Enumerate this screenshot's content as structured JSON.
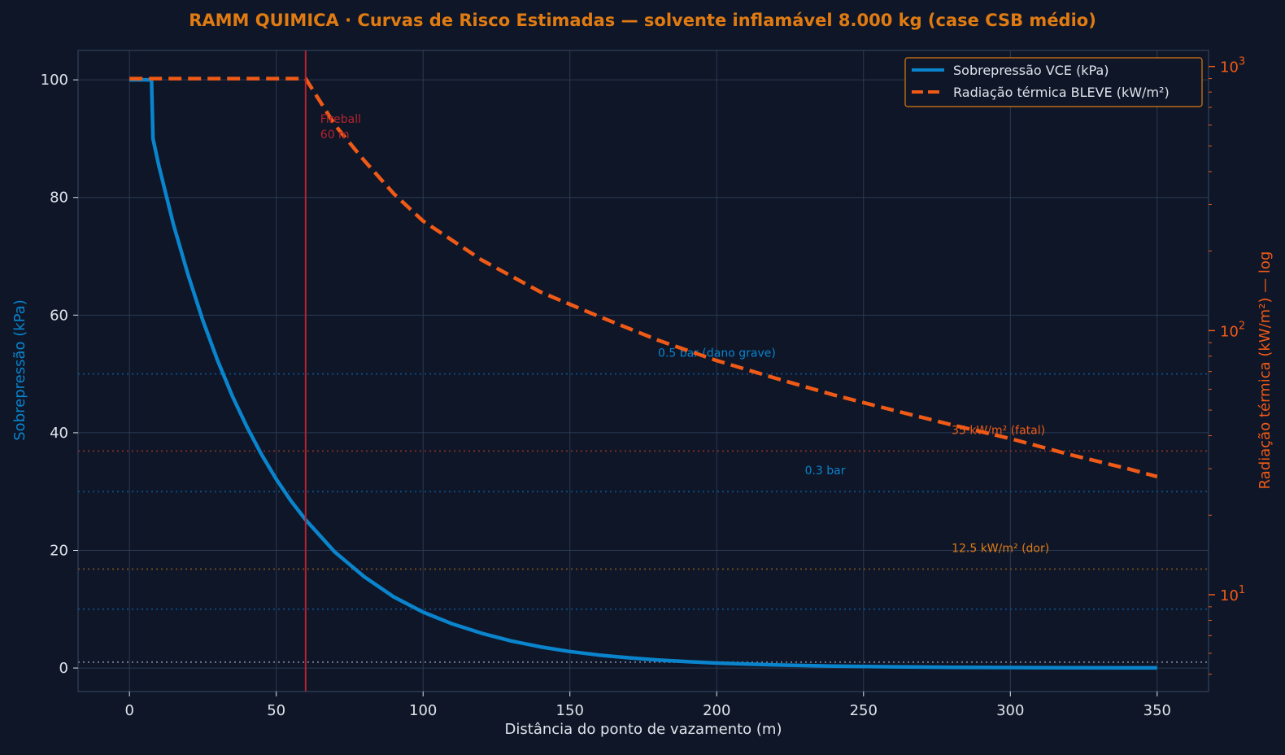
{
  "colors": {
    "background": "#0e1628",
    "title": "#e07b12",
    "vce": "#0a84cc",
    "bleve": "#f05a16",
    "fireball": "#b5232e",
    "grid": "#2c3a52",
    "tick_text": "#dfe3ea",
    "axis_spine": "#3a4a64",
    "legend_border": "#e07b12",
    "pressure_ref": "#0d4a80",
    "fatal_ref": "#7a2e26",
    "pain_ref": "#6e4a1e",
    "zero_ref": "#6b7890"
  },
  "chart_data": {
    "type": "line",
    "title": "RAMM QUIMICA · Curvas de Risco Estimadas — solvente inflamável 8.000 kg (case CSB médio)",
    "xlabel": "Distância do ponto de vazamento (m)",
    "ylabel_left": "Sobrepressão (kPa)",
    "ylabel_right": "Radiação térmica (kW/m²) — log",
    "xlim": [
      -17.5,
      367.5
    ],
    "ylim_left": [
      -4,
      105
    ],
    "ylim_right_log": [
      4.3,
      1150
    ],
    "right_axis_scale": "log",
    "grid": true,
    "legend_position": "top-right",
    "x_ticks": [
      "0",
      "50",
      "100",
      "150",
      "200",
      "250",
      "300",
      "350"
    ],
    "y_ticks_left": [
      "0",
      "20",
      "40",
      "60",
      "80",
      "100"
    ],
    "y_ticks_right": [
      {
        "base": "10",
        "exp": "1",
        "value": 10
      },
      {
        "base": "10",
        "exp": "2",
        "value": 100
      },
      {
        "base": "10",
        "exp": "3",
        "value": 1000
      }
    ],
    "series": [
      {
        "name": "Sobrepressão VCE (kPa)",
        "axis": "left",
        "style": "solid",
        "x": [
          0,
          7.5,
          8,
          10,
          15,
          20,
          25,
          30,
          35,
          40,
          45,
          50,
          55,
          60,
          70,
          80,
          90,
          100,
          110,
          120,
          130,
          140,
          150,
          160,
          170,
          180,
          190,
          200,
          220,
          240,
          260,
          280,
          300,
          320,
          340,
          350
        ],
        "y": [
          100,
          100,
          90,
          85.4,
          75.4,
          66.8,
          59.1,
          52.3,
          46.3,
          41.0,
          36.3,
          32.1,
          28.4,
          25.2,
          19.7,
          15.5,
          12.1,
          9.5,
          7.5,
          5.9,
          4.6,
          3.6,
          2.8,
          2.2,
          1.74,
          1.37,
          1.07,
          0.84,
          0.52,
          0.32,
          0.2,
          0.12,
          0.075,
          0.046,
          0.028,
          0.022
        ]
      },
      {
        "name": "Radiação térmica BLEVE (kW/m²)",
        "axis": "right",
        "style": "dashed",
        "x": [
          0,
          60,
          70,
          80,
          90,
          100,
          120,
          140,
          160,
          180,
          200,
          220,
          240,
          260,
          280,
          300,
          320,
          340,
          350
        ],
        "y": [
          900,
          900,
          600,
          440,
          330,
          260,
          185,
          140,
          113,
          92,
          77,
          66,
          57,
          50,
          44,
          39,
          34,
          30,
          28
        ]
      }
    ],
    "reference_lines": [
      {
        "axis": "left",
        "value": 50,
        "label": "0.5 bar (dano grave)",
        "label_x": 180,
        "color_key": "pressure_ref"
      },
      {
        "axis": "left",
        "value": 30,
        "label": "0.3 bar",
        "label_x": 230,
        "color_key": "pressure_ref"
      },
      {
        "axis": "left",
        "value": 10,
        "label": "",
        "color_key": "pressure_ref"
      },
      {
        "axis": "left",
        "value": 1,
        "label": "",
        "color_key": "zero_ref"
      },
      {
        "axis": "right",
        "value": 35,
        "label": "35 kW/m² (fatal)",
        "label_x": 280,
        "color_key": "fatal_ref"
      },
      {
        "axis": "right",
        "value": 12.5,
        "label": "12.5 kW/m² (dor)",
        "label_x": 280,
        "color_key": "pain_ref"
      }
    ],
    "fireball": {
      "x": 60,
      "label_lines": [
        "Fireball",
        "60 m"
      ]
    }
  }
}
